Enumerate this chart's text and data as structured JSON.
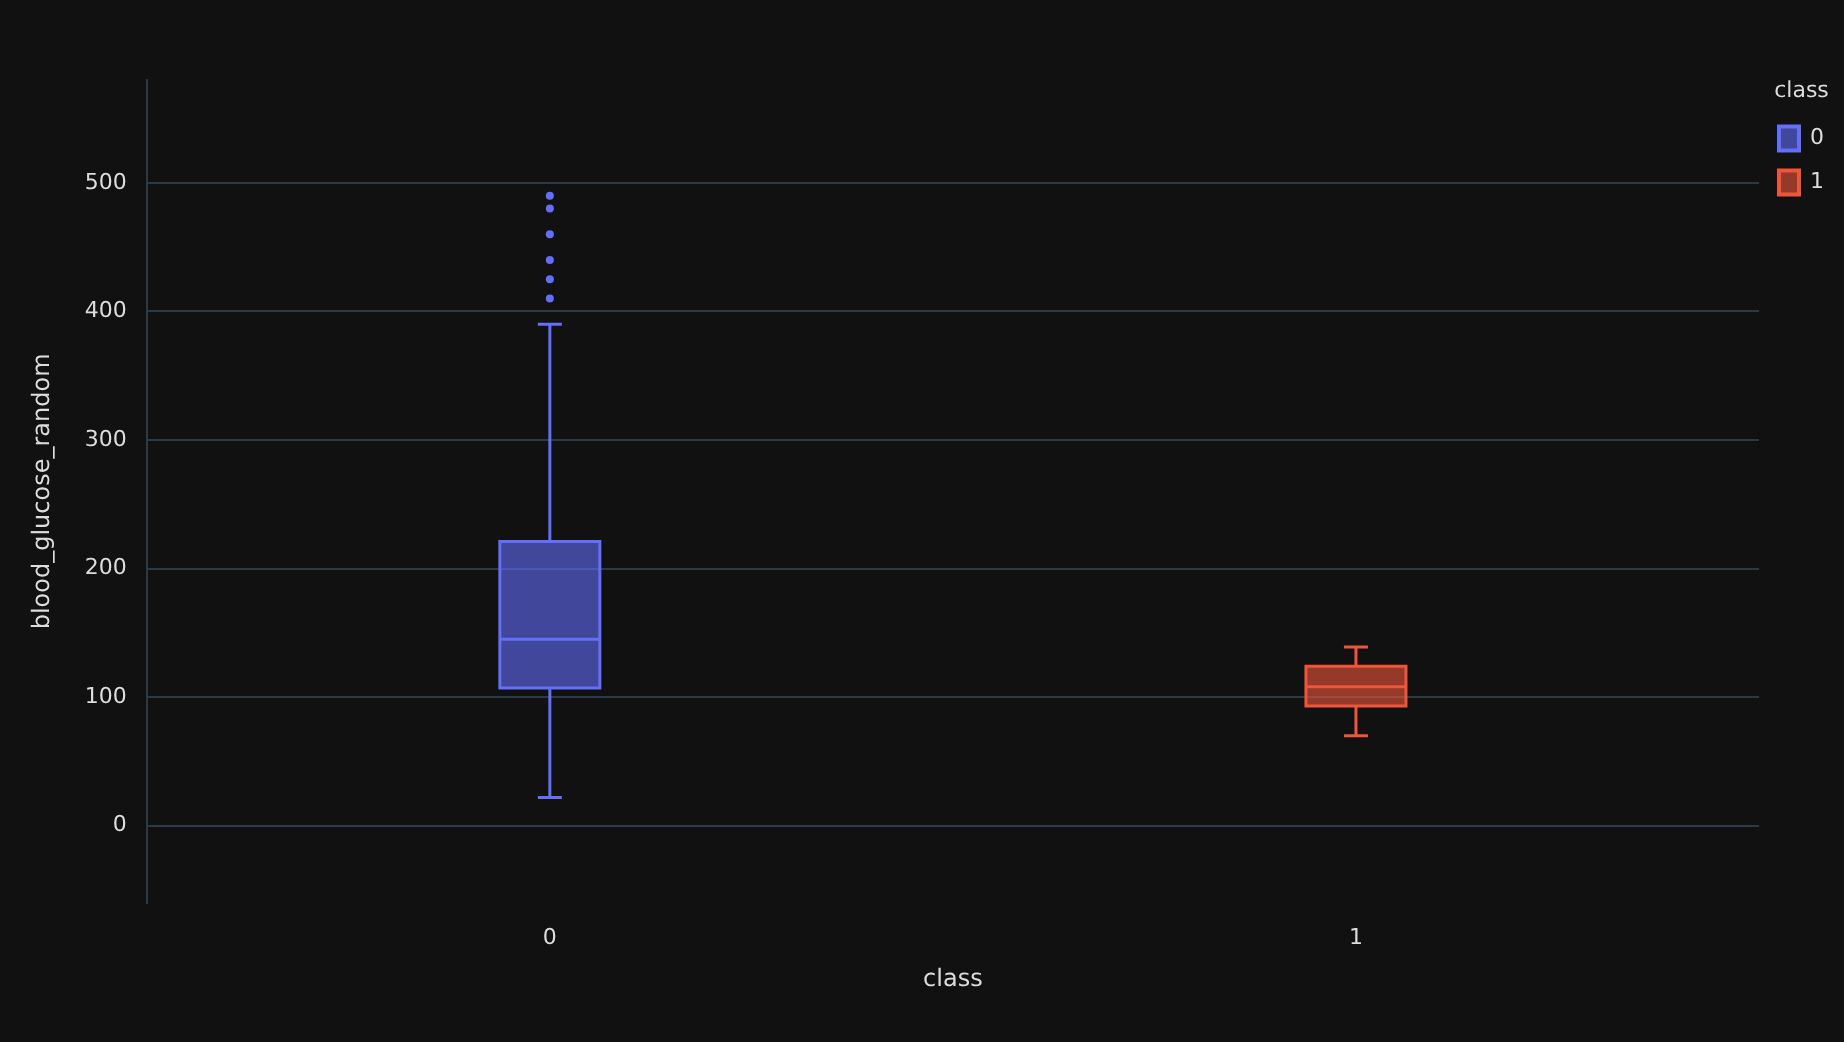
{
  "chart_data": {
    "type": "box",
    "xlabel": "class",
    "ylabel": "blood_glucose_random",
    "legend_title": "class",
    "categories": [
      "0",
      "1"
    ],
    "series": [
      {
        "name": "0",
        "color": "#636efa",
        "boxes": [
          {
            "low": 22,
            "q1": 107,
            "median": 145,
            "q3": 221,
            "high": 390,
            "outliers": [
              410,
              425,
              440,
              460,
              480,
              490
            ]
          },
          null
        ]
      },
      {
        "name": "1",
        "color": "#ef553b",
        "boxes": [
          null,
          {
            "low": 70,
            "q1": 93,
            "median": 108,
            "q3": 124,
            "high": 139
          }
        ]
      }
    ],
    "ylim": [
      -60,
      580
    ],
    "yticks": [
      0,
      100,
      200,
      300,
      400,
      500
    ],
    "grid": "y",
    "legend": "top right"
  }
}
